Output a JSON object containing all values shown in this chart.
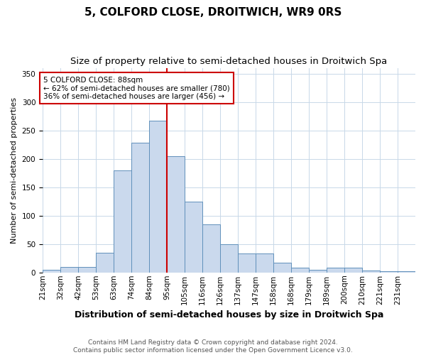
{
  "title": "5, COLFORD CLOSE, DROITWICH, WR9 0RS",
  "subtitle": "Size of property relative to semi-detached houses in Droitwich Spa",
  "xlabel": "Distribution of semi-detached houses by size in Droitwich Spa",
  "ylabel": "Number of semi-detached properties",
  "footer1": "Contains HM Land Registry data © Crown copyright and database right 2024.",
  "footer2": "Contains public sector information licensed under the Open Government Licence v3.0.",
  "bar_labels": [
    "21sqm",
    "32sqm",
    "42sqm",
    "53sqm",
    "63sqm",
    "74sqm",
    "84sqm",
    "95sqm",
    "105sqm",
    "116sqm",
    "126sqm",
    "137sqm",
    "147sqm",
    "158sqm",
    "168sqm",
    "179sqm",
    "189sqm",
    "200sqm",
    "210sqm",
    "221sqm",
    "231sqm"
  ],
  "bar_heights": [
    5,
    10,
    10,
    35,
    180,
    228,
    267,
    205,
    125,
    85,
    50,
    33,
    33,
    17,
    8,
    5,
    8,
    8,
    3,
    2,
    2
  ],
  "bar_color": "#cad9ed",
  "bar_edge_color": "#6090bb",
  "vline_x_index": 6,
  "vline_color": "#cc0000",
  "annotation_text": "5 COLFORD CLOSE: 88sqm\n← 62% of semi-detached houses are smaller (780)\n36% of semi-detached houses are larger (456) →",
  "annotation_box_color": "#ffffff",
  "annotation_box_edge_color": "#cc0000",
  "ylim": [
    0,
    360
  ],
  "yticks": [
    0,
    50,
    100,
    150,
    200,
    250,
    300,
    350
  ],
  "bin_width": 11,
  "background_color": "#ffffff",
  "grid_color": "#c8d8e8",
  "title_fontsize": 11,
  "subtitle_fontsize": 9.5,
  "xlabel_fontsize": 9,
  "ylabel_fontsize": 8,
  "tick_fontsize": 7.5,
  "footer_fontsize": 6.5
}
